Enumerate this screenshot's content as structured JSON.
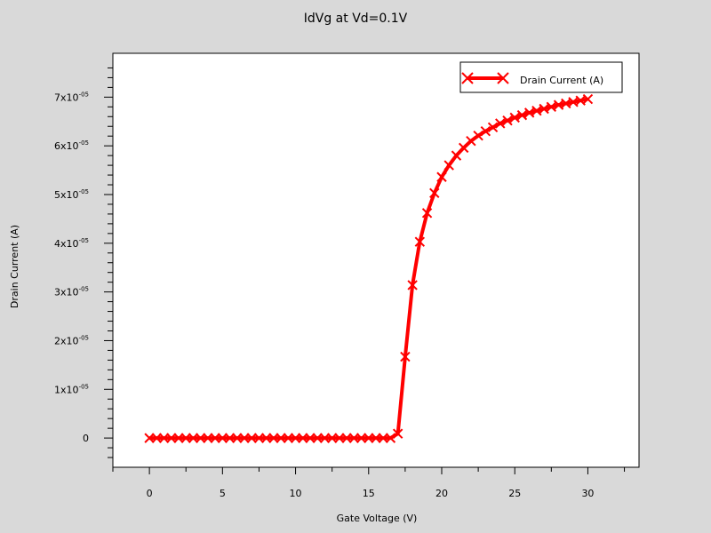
{
  "chart_data": {
    "type": "line",
    "title": "IdVg at Vd=0.1V",
    "xlabel": "Gate Voltage (V)",
    "ylabel": "Drain Current (A)",
    "xlim": [
      -2.5,
      33.5
    ],
    "ylim": [
      -6e-06,
      7.9e-05
    ],
    "x_ticks": [
      0,
      5,
      10,
      15,
      20,
      25,
      30
    ],
    "y_ticks": [
      {
        "value": 0,
        "mantissa": "0",
        "exp": ""
      },
      {
        "value": 1e-05,
        "mantissa": "1x10",
        "exp": "-05"
      },
      {
        "value": 2e-05,
        "mantissa": "2x10",
        "exp": "-05"
      },
      {
        "value": 3e-05,
        "mantissa": "3x10",
        "exp": "-05"
      },
      {
        "value": 4e-05,
        "mantissa": "4x10",
        "exp": "-05"
      },
      {
        "value": 5e-05,
        "mantissa": "5x10",
        "exp": "-05"
      },
      {
        "value": 6e-05,
        "mantissa": "6x10",
        "exp": "-05"
      },
      {
        "value": 7e-05,
        "mantissa": "7x10",
        "exp": "-05"
      }
    ],
    "legend_position": "top-right",
    "grid": false,
    "series": [
      {
        "name": "Drain Current (A)",
        "color": "#ff0000",
        "marker": "x",
        "x": [
          0,
          0.5,
          1,
          1.5,
          2,
          2.5,
          3,
          3.5,
          4,
          4.5,
          5,
          5.5,
          6,
          6.5,
          7,
          7.5,
          8,
          8.5,
          9,
          9.5,
          10,
          10.5,
          11,
          11.5,
          12,
          12.5,
          13,
          13.5,
          14,
          14.5,
          15,
          15.5,
          16,
          16.5,
          17,
          17.5,
          18,
          18.5,
          19,
          19.5,
          20,
          20.5,
          21,
          21.5,
          22,
          22.5,
          23,
          23.5,
          24,
          24.5,
          25,
          25.5,
          26,
          26.5,
          27,
          27.5,
          28,
          28.5,
          29,
          29.5,
          30
        ],
        "y": [
          0,
          0,
          0,
          0,
          0,
          0,
          0,
          0,
          0,
          0,
          0,
          0,
          0,
          0,
          0,
          0,
          0,
          0,
          0,
          0,
          0,
          0,
          0,
          0,
          0,
          0,
          0,
          0,
          0,
          0,
          0,
          0,
          0,
          0,
          9e-07,
          1.67e-05,
          3.14e-05,
          4.03e-05,
          4.62e-05,
          5.03e-05,
          5.36e-05,
          5.6e-05,
          5.8e-05,
          5.96e-05,
          6.1e-05,
          6.21e-05,
          6.3e-05,
          6.38e-05,
          6.46e-05,
          6.52e-05,
          6.58e-05,
          6.63e-05,
          6.68e-05,
          6.72e-05,
          6.76e-05,
          6.8e-05,
          6.84e-05,
          6.87e-05,
          6.9e-05,
          6.93e-05,
          6.96e-05
        ]
      }
    ]
  }
}
